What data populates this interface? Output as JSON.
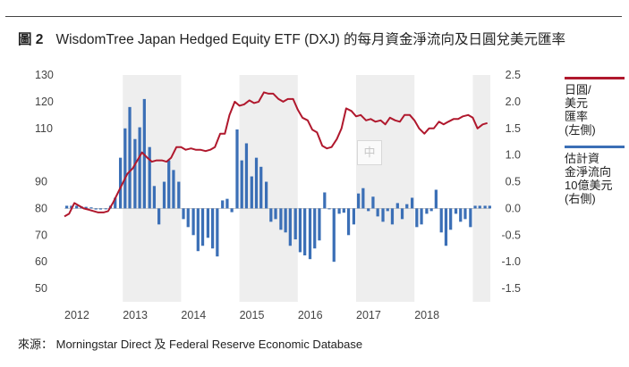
{
  "figure": {
    "number": "圖 2",
    "title": "WisdomTree Japan Hedged Equity ETF (DXJ) 的每月資金淨流向及日圓兌美元匯率"
  },
  "legend": {
    "fx_label": "日圓/\n美元\n匯率\n(左側)",
    "flow_label": "估計資\n金淨流向\n10億美元\n(右側)"
  },
  "watermark": "中",
  "source": "來源： Morningstar Direct 及 Federal Reserve Economic Database",
  "colors": {
    "fx_line": "#b0182d",
    "flow_bars": "#3b6fb6",
    "band": "#eeeeee",
    "axis_text": "#444444"
  },
  "chart_data": {
    "type": "bar+line",
    "left_axis": {
      "ylim": [
        45,
        130
      ],
      "ticks": [
        "130",
        "120",
        "110",
        "90",
        "80",
        "70",
        "60",
        "50"
      ],
      "tick_values": [
        130,
        120,
        110,
        90,
        80,
        70,
        60,
        50
      ]
    },
    "right_axis": {
      "ylim": [
        -1.75,
        2.5
      ],
      "ticks": [
        "2.5",
        "2.0",
        "1.5",
        "1.0",
        "0.5",
        "0.0",
        "-0.5",
        "-1.0",
        "-1.5"
      ],
      "tick_values": [
        2.5,
        2.0,
        1.5,
        1.0,
        0.5,
        0.0,
        -0.5,
        -1.0,
        -1.5
      ]
    },
    "x_axis": {
      "labels": [
        "2012",
        "2013",
        "2014",
        "2015",
        "2016",
        "2017",
        "2018"
      ],
      "start": 2012.0,
      "end": 2019.3
    },
    "shaded_years": [
      [
        2013,
        2014
      ],
      [
        2015,
        2016
      ],
      [
        2017,
        2018
      ],
      [
        2019,
        2019.3
      ]
    ],
    "fx_series": {
      "x": [
        2012.0,
        2012.08,
        2012.17,
        2012.25,
        2012.33,
        2012.42,
        2012.5,
        2012.58,
        2012.67,
        2012.75,
        2012.83,
        2012.92,
        2013.0,
        2013.08,
        2013.17,
        2013.25,
        2013.33,
        2013.42,
        2013.5,
        2013.58,
        2013.67,
        2013.75,
        2013.83,
        2013.92,
        2014.0,
        2014.08,
        2014.17,
        2014.25,
        2014.33,
        2014.42,
        2014.5,
        2014.58,
        2014.67,
        2014.75,
        2014.83,
        2014.92,
        2015.0,
        2015.08,
        2015.17,
        2015.25,
        2015.33,
        2015.42,
        2015.5,
        2015.58,
        2015.67,
        2015.75,
        2015.83,
        2015.92,
        2016.0,
        2016.08,
        2016.17,
        2016.25,
        2016.33,
        2016.42,
        2016.5,
        2016.58,
        2016.67,
        2016.75,
        2016.83,
        2016.92,
        2017.0,
        2017.08,
        2017.17,
        2017.25,
        2017.33,
        2017.42,
        2017.5,
        2017.58,
        2017.67,
        2017.75,
        2017.83,
        2017.92,
        2018.0,
        2018.08,
        2018.17,
        2018.25,
        2018.33,
        2018.42,
        2018.5,
        2018.58,
        2018.67,
        2018.75,
        2018.83,
        2018.92,
        2019.0,
        2019.08,
        2019.17,
        2019.25
      ],
      "values": [
        77,
        78,
        82,
        81,
        80,
        79.5,
        79,
        78.5,
        78.5,
        79,
        82,
        86,
        89.5,
        93,
        95,
        98,
        101,
        99,
        97.5,
        98,
        98,
        97.5,
        99,
        103,
        103,
        102,
        102.5,
        102,
        102,
        101.5,
        102,
        103,
        108,
        108,
        115,
        120,
        118.5,
        119,
        120.5,
        119.5,
        120,
        123.5,
        123,
        123,
        121,
        120,
        121,
        121,
        117,
        114,
        113,
        109.5,
        108.5,
        103.5,
        102.5,
        103,
        106,
        110,
        117.5,
        116.5,
        114.5,
        115,
        113,
        113.5,
        112.5,
        113,
        111.5,
        114,
        113,
        112.5,
        115,
        115,
        113,
        110,
        108,
        110,
        110,
        112.5,
        111.5,
        112.5,
        113.5,
        113.5,
        114.5,
        115,
        114,
        110,
        111.5,
        112
      ]
    },
    "flow_series": {
      "x": [
        2012.0,
        2012.08,
        2012.17,
        2012.25,
        2012.33,
        2012.42,
        2012.5,
        2012.58,
        2012.67,
        2012.75,
        2012.83,
        2012.92,
        2013.0,
        2013.08,
        2013.17,
        2013.25,
        2013.33,
        2013.42,
        2013.5,
        2013.58,
        2013.67,
        2013.75,
        2013.83,
        2013.92,
        2014.0,
        2014.08,
        2014.17,
        2014.25,
        2014.33,
        2014.42,
        2014.5,
        2014.58,
        2014.67,
        2014.75,
        2014.83,
        2014.92,
        2015.0,
        2015.08,
        2015.17,
        2015.25,
        2015.33,
        2015.42,
        2015.5,
        2015.58,
        2015.67,
        2015.75,
        2015.83,
        2015.92,
        2016.0,
        2016.08,
        2016.17,
        2016.25,
        2016.33,
        2016.42,
        2016.5,
        2016.58,
        2016.67,
        2016.75,
        2016.83,
        2016.92,
        2017.0,
        2017.08,
        2017.17,
        2017.25,
        2017.33,
        2017.42,
        2017.5,
        2017.58,
        2017.67,
        2017.75,
        2017.83,
        2017.92,
        2018.0,
        2018.08,
        2018.17,
        2018.25,
        2018.33,
        2018.42,
        2018.5,
        2018.58,
        2018.67,
        2018.75,
        2018.83,
        2018.92,
        2019.0,
        2019.08,
        2019.17,
        2019.25
      ],
      "values": [
        0.05,
        0.05,
        0.05,
        0.04,
        0.03,
        0.02,
        -0.02,
        -0.02,
        -0.01,
        0.05,
        0.2,
        0.95,
        1.5,
        1.9,
        1.3,
        1.52,
        2.05,
        1.15,
        0.42,
        -0.3,
        0.5,
        0.9,
        0.72,
        0.5,
        -0.2,
        -0.35,
        -0.5,
        -0.8,
        -0.7,
        -0.55,
        -0.75,
        -0.9,
        0.15,
        0.18,
        -0.07,
        1.48,
        0.9,
        1.22,
        0.6,
        0.95,
        0.78,
        0.5,
        -0.25,
        -0.2,
        -0.4,
        -0.45,
        -0.7,
        -0.58,
        -0.82,
        -0.88,
        -0.95,
        -0.75,
        -0.6,
        0.3,
        0.0,
        -1.0,
        -0.1,
        -0.08,
        -0.5,
        -0.3,
        0.28,
        0.38,
        -0.05,
        0.22,
        -0.15,
        -0.25,
        -0.05,
        -0.3,
        0.1,
        -0.2,
        0.08,
        0.2,
        -0.35,
        -0.3,
        -0.1,
        -0.05,
        0.35,
        -0.45,
        -0.7,
        -0.4,
        -0.1,
        -0.25,
        -0.2,
        -0.35,
        0.05,
        0.05,
        0.05,
        0.05
      ]
    }
  }
}
